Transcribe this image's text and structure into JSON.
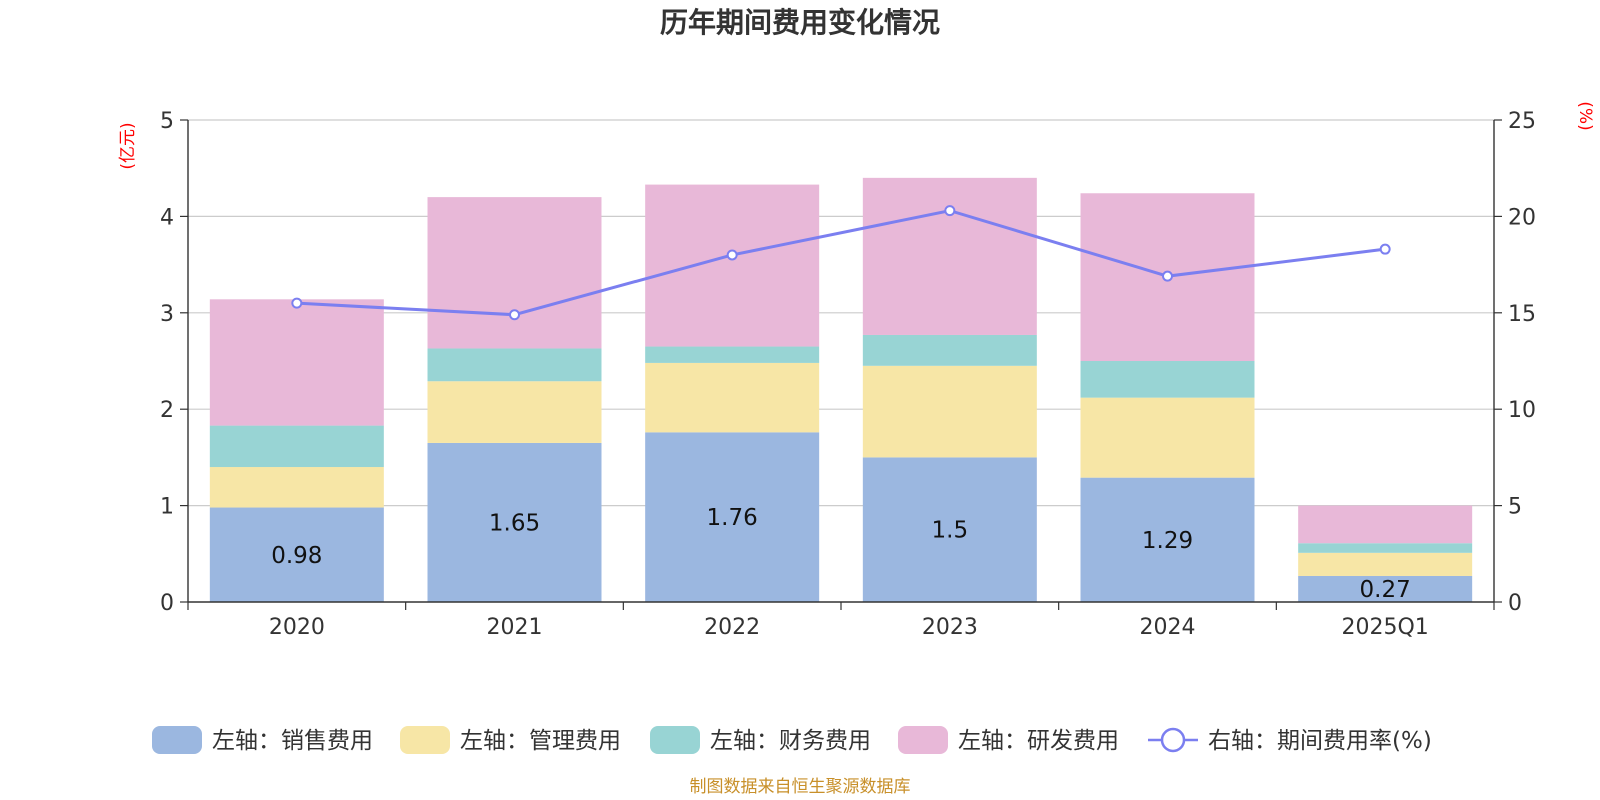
{
  "chart_data": {
    "type": "bar",
    "stacked": true,
    "title": "历年期间费用变化情况",
    "categories": [
      "2020",
      "2021",
      "2022",
      "2023",
      "2024",
      "2025Q1"
    ],
    "left_axis": {
      "unit": "(亿元)",
      "ylim": [
        0,
        5
      ],
      "ticks": [
        "0",
        "1",
        "2",
        "3",
        "4",
        "5"
      ]
    },
    "right_axis": {
      "unit": "(%)",
      "ylim": [
        0,
        25
      ],
      "ticks": [
        "0",
        "5",
        "10",
        "15",
        "20",
        "25"
      ]
    },
    "grid": true,
    "series": [
      {
        "name": "左轴：销售费用",
        "axis": "left",
        "color": "#9bb7e0",
        "values": [
          0.98,
          1.65,
          1.76,
          1.5,
          1.29,
          0.27
        ],
        "labels": [
          "0.98",
          "1.65",
          "1.76",
          "1.5",
          "1.29",
          "0.27"
        ]
      },
      {
        "name": "左轴：管理费用",
        "axis": "left",
        "color": "#f7e6a6",
        "values": [
          0.42,
          0.64,
          0.72,
          0.95,
          0.83,
          0.24
        ]
      },
      {
        "name": "左轴：财务费用",
        "axis": "left",
        "color": "#98d4d4",
        "values": [
          0.43,
          0.34,
          0.17,
          0.32,
          0.38,
          0.1
        ]
      },
      {
        "name": "左轴：研发费用",
        "axis": "left",
        "color": "#e8b8d8",
        "values": [
          1.31,
          1.57,
          1.68,
          1.63,
          1.74,
          0.39
        ]
      },
      {
        "name": "右轴：期间费用率(%)",
        "axis": "right",
        "type": "line",
        "color": "#7b7ff0",
        "values": [
          15.5,
          14.9,
          18.0,
          20.3,
          16.9,
          18.3
        ]
      }
    ],
    "legend_position": "bottom",
    "source": "制图数据来自恒生聚源数据库"
  }
}
